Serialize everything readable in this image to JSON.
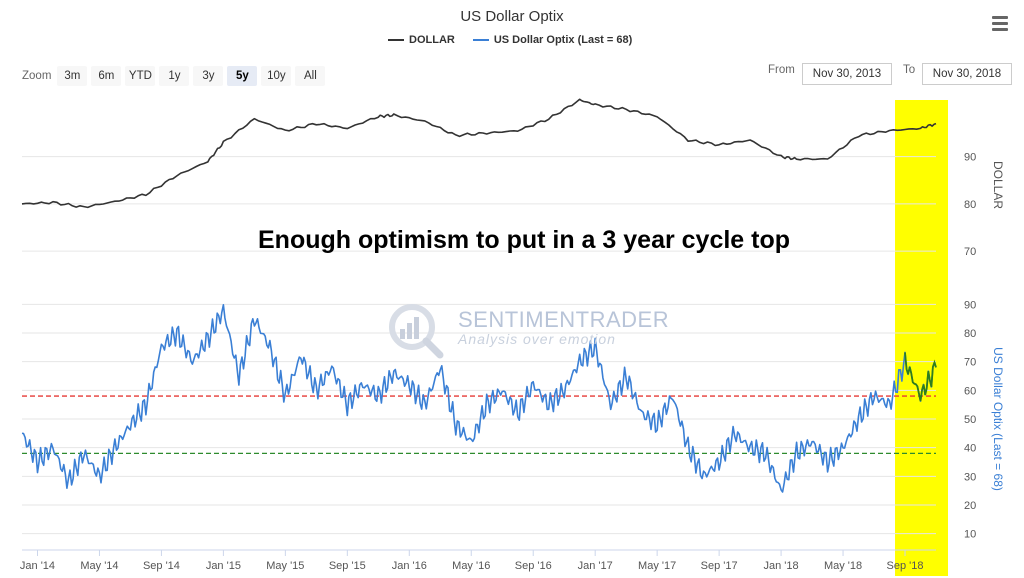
{
  "chart_title": "US Dollar Optix",
  "legend": [
    {
      "label": "DOLLAR",
      "color": "#333333"
    },
    {
      "label": "US Dollar Optix (Last = 68)",
      "color": "#3a7fd5"
    }
  ],
  "toolbar": {
    "zoom_label": "Zoom",
    "zoom_buttons": [
      "3m",
      "6m",
      "YTD",
      "1y",
      "3y",
      "5y",
      "10y",
      "All"
    ],
    "active_zoom": "5y",
    "from_label": "From",
    "from_value": "Nov 30, 2013",
    "to_label": "To",
    "to_value": "Nov 30, 2018"
  },
  "annotation": "Enough optimism to put in a 3 year cycle top",
  "watermark": {
    "title": "SENTIMENTRADER",
    "subtitle": "Analysis over emotion"
  },
  "colors": {
    "dollar": "#333333",
    "optix": "#3a7fd5",
    "optix_highlight": "#2e7d1e",
    "highlight_band": "#ffff00",
    "upper_threshold": "#e53935",
    "lower_threshold": "#2e8b2e",
    "grid": "#e6e6e6"
  },
  "chart_data": [
    {
      "type": "line",
      "x_range": [
        "Dec 2013",
        "Nov 2018"
      ],
      "x_tick_labels": [
        "Jan '14",
        "May '14",
        "Sep '14",
        "Jan '15",
        "May '15",
        "Sep '15",
        "Jan '16",
        "May '16",
        "Sep '16",
        "Jan '17",
        "May '17",
        "Sep '17",
        "Jan '18",
        "May '18",
        "Sep '18"
      ],
      "highlight_range": [
        "Sep 2018",
        "Nov 2018"
      ],
      "panels": [
        {
          "series": [
            {
              "name": "DOLLAR",
              "x": [
                "Dec 2013",
                "Feb 2014",
                "Apr 2014",
                "Jun 2014",
                "Aug 2014",
                "Oct 2014",
                "Dec 2014",
                "Jan 2015",
                "Mar 2015",
                "May 2015",
                "Jul 2015",
                "Sep 2015",
                "Nov 2015",
                "Dec 2015",
                "Feb 2016",
                "Apr 2016",
                "Jun 2016",
                "Aug 2016",
                "Oct 2016",
                "Dec 2016",
                "Jan 2017",
                "Mar 2017",
                "May 2017",
                "Jul 2017",
                "Sep 2017",
                "Nov 2017",
                "Jan 2018",
                "Feb 2018",
                "Apr 2018",
                "Jun 2018",
                "Aug 2018",
                "Oct 2018",
                "Nov 2018"
              ],
              "values": [
                80.0,
                80.3,
                79.3,
                80.5,
                82.0,
                86.0,
                89.0,
                93.0,
                98.0,
                95.5,
                97.0,
                96.0,
                98.5,
                98.8,
                97.5,
                94.5,
                95.0,
                95.5,
                98.0,
                102.0,
                101.0,
                100.0,
                98.5,
                93.5,
                92.5,
                93.5,
                90.0,
                89.5,
                89.5,
                94.5,
                95.5,
                96.0,
                97.0
              ]
            }
          ],
          "ylabel": "DOLLAR",
          "y_ticks": [
            70,
            80,
            90
          ],
          "ylim": [
            66,
            102
          ]
        },
        {
          "series": [
            {
              "name": "US Dollar Optix (Last = 68)",
              "x": [
                "Dec 2013",
                "Jan 2014",
                "Feb 2014",
                "Mar 2014",
                "Apr 2014",
                "May 2014",
                "Jun 2014",
                "Jul 2014",
                "Aug 2014",
                "Sep 2014",
                "Oct 2014",
                "Nov 2014",
                "Dec 2014",
                "Jan 2015",
                "Feb 2015",
                "Mar 2015",
                "Apr 2015",
                "May 2015",
                "Jun 2015",
                "Jul 2015",
                "Aug 2015",
                "Sep 2015",
                "Oct 2015",
                "Nov 2015",
                "Dec 2015",
                "Jan 2016",
                "Feb 2016",
                "Mar 2016",
                "Apr 2016",
                "May 2016",
                "Jun 2016",
                "Jul 2016",
                "Aug 2016",
                "Sep 2016",
                "Oct 2016",
                "Nov 2016",
                "Dec 2016",
                "Jan 2017",
                "Feb 2017",
                "Mar 2017",
                "Apr 2017",
                "May 2017",
                "Jun 2017",
                "Jul 2017",
                "Aug 2017",
                "Sep 2017",
                "Oct 2017",
                "Nov 2017",
                "Dec 2017",
                "Jan 2018",
                "Feb 2018",
                "Mar 2018",
                "Apr 2018",
                "May 2018",
                "Jun 2018",
                "Jul 2018",
                "Aug 2018",
                "Sep 2018",
                "Oct 2018",
                "Nov 2018"
              ],
              "values": [
                45,
                35,
                40,
                28,
                38,
                30,
                40,
                48,
                55,
                75,
                80,
                70,
                78,
                88,
                65,
                85,
                75,
                58,
                72,
                60,
                68,
                55,
                62,
                58,
                66,
                62,
                55,
                68,
                48,
                42,
                55,
                60,
                52,
                62,
                55,
                60,
                70,
                75,
                55,
                65,
                52,
                48,
                58,
                40,
                30,
                35,
                45,
                40,
                38,
                25,
                38,
                42,
                35,
                40,
                50,
                58,
                55,
                70,
                58,
                68
              ]
            }
          ],
          "ylabel": "US Dollar Optix (Last = 68)",
          "y_ticks": [
            10,
            20,
            30,
            40,
            50,
            60,
            70,
            80,
            90
          ],
          "ylim": [
            5,
            95
          ],
          "reference_lines": [
            58,
            38
          ]
        }
      ]
    }
  ]
}
